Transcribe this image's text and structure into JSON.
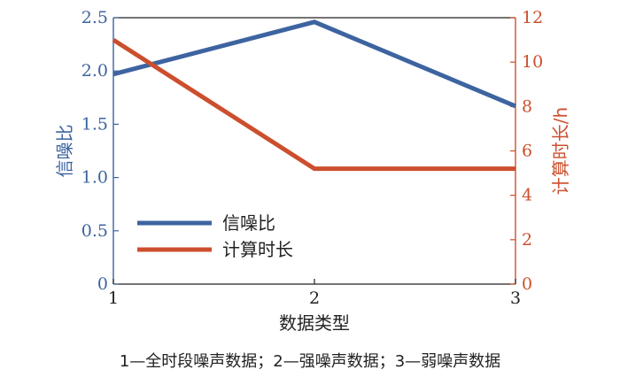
{
  "chart_data": {
    "type": "line",
    "x": [
      1,
      2,
      3
    ],
    "xlabel": "数据类型",
    "x_ticks": [
      "1",
      "2",
      "3"
    ],
    "y_left": {
      "label": "信噪比",
      "ylim": [
        0,
        2.5
      ],
      "ticks": [
        "0",
        "0.5",
        "1.0",
        "1.5",
        "2.0",
        "2.5"
      ],
      "color": "#3d64a0"
    },
    "y_right": {
      "label": "计算时长/h",
      "ylim": [
        0,
        12
      ],
      "ticks": [
        "0",
        "2",
        "4",
        "6",
        "8",
        "10",
        "12"
      ],
      "color": "#cc4f2d"
    },
    "series": [
      {
        "name": "信噪比",
        "axis": "left",
        "values": [
          1.97,
          2.46,
          1.67
        ],
        "color": "#3d64a0"
      },
      {
        "name": "计算时长",
        "axis": "right",
        "values": [
          11.0,
          5.2,
          5.2
        ],
        "color": "#cc4f2d"
      }
    ],
    "legend_position": "lower-left",
    "grid": false
  },
  "caption": "1—全时段噪声数据；2—强噪声数据；3—弱噪声数据"
}
